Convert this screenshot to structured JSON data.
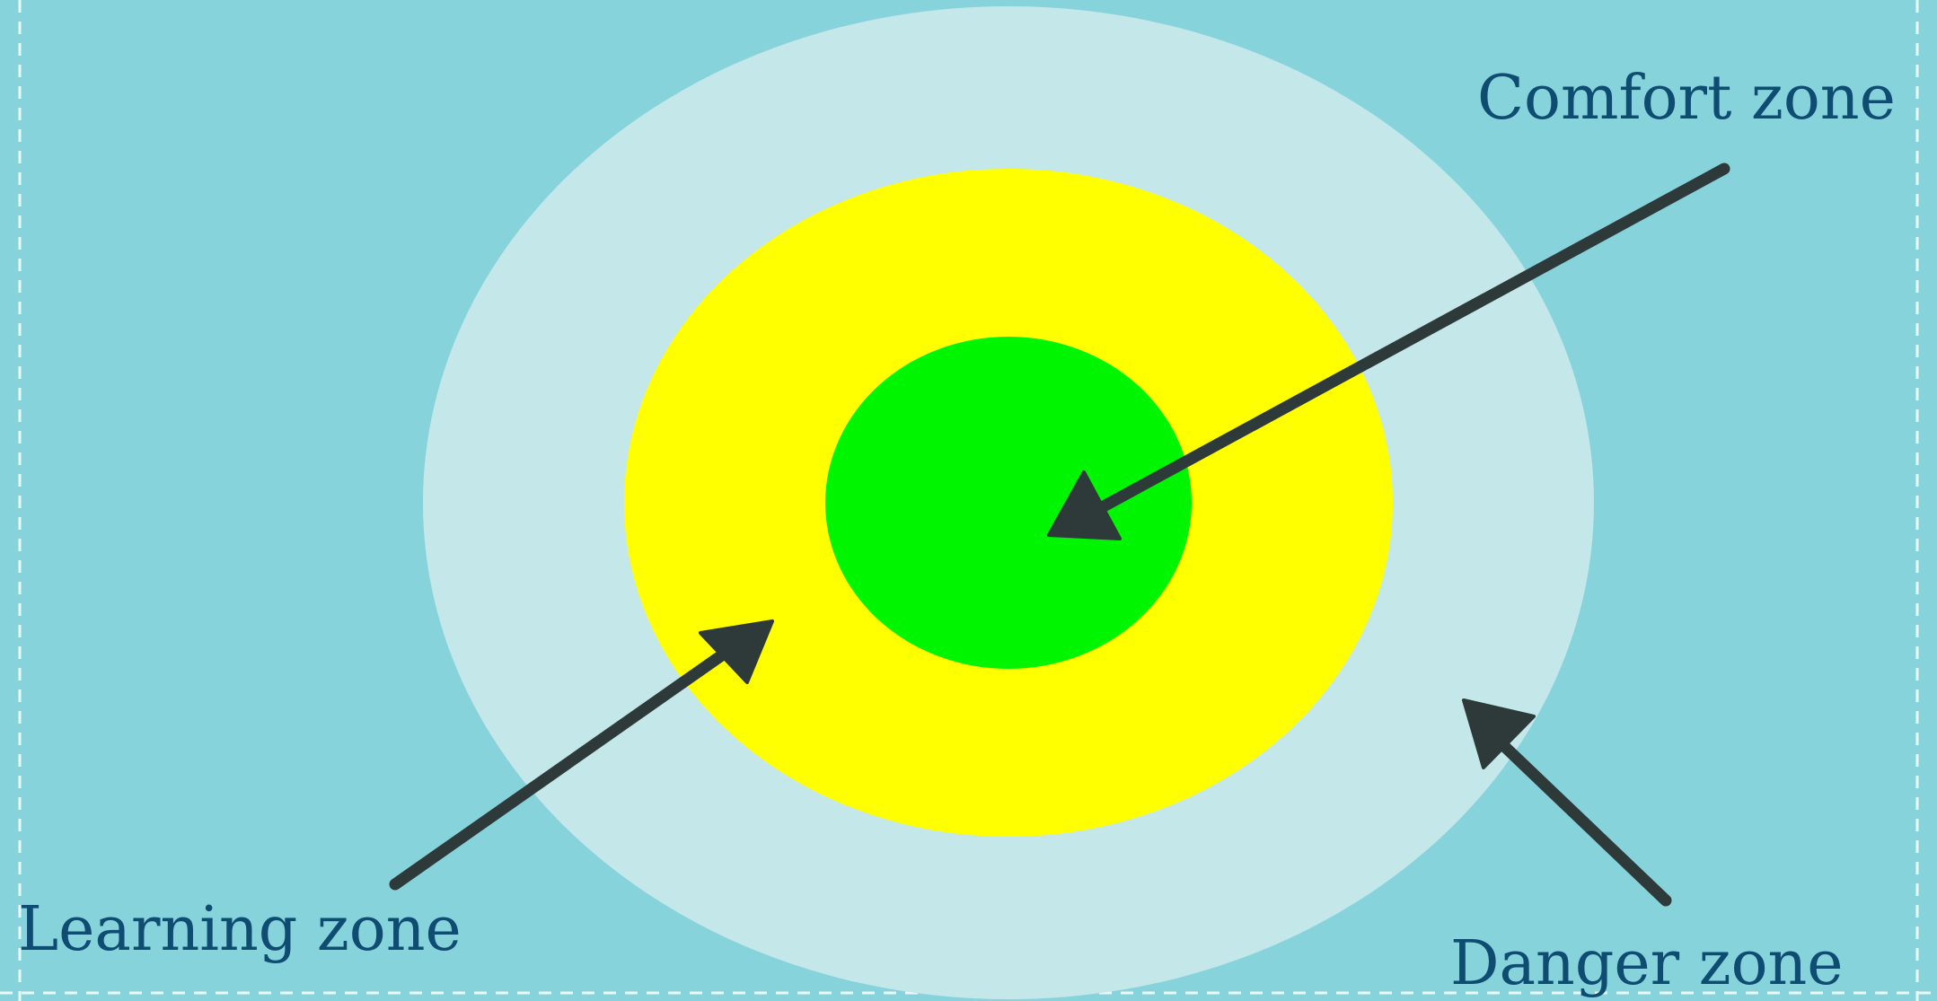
{
  "diagram": {
    "labels": {
      "comfort": "Comfort zone",
      "learning": "Learning zone",
      "danger": "Danger zone"
    },
    "colors": {
      "background": "#86d3dc",
      "outer_zone": "#c4e7ea",
      "learning_zone": "#ffff00",
      "comfort_zone": "#00f500",
      "arrows": "#2e3a3a",
      "text": "#0e4c72",
      "border_marks": "#ffffff"
    }
  }
}
